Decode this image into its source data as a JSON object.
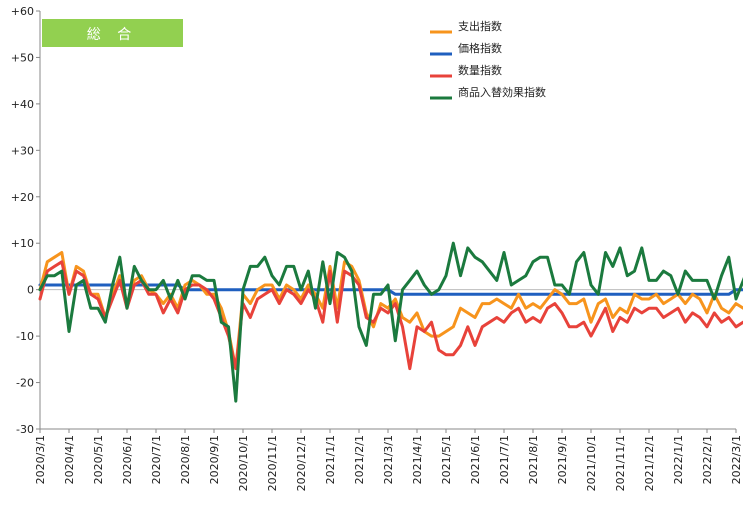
{
  "chart_data": {
    "type": "line",
    "title": "総 合",
    "title_badge_color": "#92D050",
    "xlabel": "",
    "ylabel": "",
    "ylim": [
      -30,
      60
    ],
    "y_ticks": [
      {
        "value": 60,
        "label": "+60"
      },
      {
        "value": 50,
        "label": "+50"
      },
      {
        "value": 40,
        "label": "+40"
      },
      {
        "value": 30,
        "label": "+30"
      },
      {
        "value": 20,
        "label": "+20"
      },
      {
        "value": 10,
        "label": "+10"
      },
      {
        "value": 0,
        "label": "0"
      },
      {
        "value": -10,
        "label": "-10"
      },
      {
        "value": -20,
        "label": "-20"
      },
      {
        "value": -30,
        "label": "-30"
      }
    ],
    "x_tick_labels": [
      "2020/3/1",
      "2020/4/1",
      "2020/5/1",
      "2020/6/1",
      "2020/7/1",
      "2020/8/1",
      "2020/9/1",
      "2020/10/1",
      "2020/11/1",
      "2020/12/1",
      "2021/1/1",
      "2021/2/1",
      "2021/3/1",
      "2021/4/1",
      "2021/5/1",
      "2021/6/1",
      "2021/7/1",
      "2021/8/1",
      "2021/9/1",
      "2021/10/1",
      "2021/11/1",
      "2021/12/1",
      "2022/1/1",
      "2022/2/1",
      "2022/3/1"
    ],
    "points_per_month": 4,
    "x_start": "2020/3/1",
    "x_end": "2022/3/1",
    "legend_position": "top-right",
    "series": [
      {
        "name": "支出指数",
        "color": "#F7941D",
        "values": [
          0,
          6,
          7,
          8,
          -1,
          5,
          4,
          -1,
          -1,
          -6,
          -1,
          3,
          -3,
          2,
          3,
          0,
          -1,
          -3,
          -1,
          -4,
          1,
          2,
          1,
          -1,
          -1,
          -4,
          -9,
          -17,
          -1,
          -3,
          0,
          1,
          1,
          -2,
          1,
          0,
          -2,
          1,
          -1,
          -4,
          5,
          -4,
          6,
          5,
          2,
          -5,
          -8,
          -3,
          -4,
          -2,
          -6,
          -7,
          -5,
          -9,
          -10,
          -10,
          -9,
          -8,
          -4,
          -5,
          -6,
          -3,
          -3,
          -2,
          -3,
          -4,
          -1,
          -4,
          -3,
          -4,
          -2,
          0,
          -1,
          -3,
          -3,
          -2,
          -7,
          -3,
          -2,
          -6,
          -4,
          -5,
          -1,
          -2,
          -2,
          -1,
          -3,
          -2,
          -1,
          -3,
          -1,
          -2,
          -5,
          -1,
          -4,
          -5,
          -3,
          -4,
          -3,
          -6,
          -3,
          -1,
          -7,
          -4,
          -1,
          -1,
          -2,
          -1,
          -2,
          -1,
          -3,
          -1
        ]
      },
      {
        "name": "価格指数",
        "color": "#1F5FBF",
        "values": [
          1,
          1,
          1,
          1,
          1,
          1,
          1,
          1,
          1,
          1,
          1,
          1,
          1,
          1,
          1,
          1,
          1,
          1,
          1,
          1,
          0,
          0,
          0,
          0,
          0,
          0,
          0,
          0,
          0,
          0,
          0,
          0,
          0,
          0,
          0,
          0,
          0,
          0,
          0,
          0,
          0,
          0,
          0,
          0,
          0,
          0,
          0,
          0,
          0,
          -1,
          -1,
          -1,
          -1,
          -1,
          -1,
          -1,
          -1,
          -1,
          -1,
          -1,
          -1,
          -1,
          -1,
          -1,
          -1,
          -1,
          -1,
          -1,
          -1,
          -1,
          -1,
          -1,
          -1,
          -1,
          -1,
          -1,
          -1,
          -1,
          -1,
          -1,
          -1,
          -1,
          -1,
          -1,
          -1,
          -1,
          -1,
          -1,
          -1,
          -1,
          -1,
          -1,
          -1,
          -1,
          -1,
          -1,
          0,
          0,
          0,
          0,
          0,
          0,
          0,
          0,
          0,
          0,
          0,
          0,
          0,
          0,
          0,
          0
        ]
      },
      {
        "name": "数量指数",
        "color": "#E8423A",
        "values": [
          -2,
          4,
          5,
          6,
          -1,
          4,
          3,
          -1,
          -2,
          -6,
          -2,
          2,
          -4,
          1,
          2,
          -1,
          -1,
          -5,
          -2,
          -5,
          0,
          1,
          1,
          0,
          -2,
          -6,
          -10,
          -17,
          -3,
          -6,
          -2,
          -1,
          0,
          -3,
          0,
          -1,
          -3,
          0,
          -2,
          -7,
          4,
          -7,
          4,
          3,
          1,
          -6,
          -7,
          -4,
          -5,
          -3,
          -8,
          -17,
          -8,
          -9,
          -7,
          -13,
          -14,
          -14,
          -12,
          -8,
          -12,
          -8,
          -7,
          -6,
          -7,
          -5,
          -4,
          -7,
          -6,
          -7,
          -4,
          -3,
          -5,
          -8,
          -8,
          -7,
          -10,
          -7,
          -4,
          -9,
          -6,
          -7,
          -4,
          -5,
          -4,
          -4,
          -6,
          -5,
          -4,
          -7,
          -5,
          -6,
          -8,
          -5,
          -7,
          -6,
          -8,
          -7,
          -6,
          -8,
          -6,
          -2,
          -10,
          -7,
          -4,
          -4,
          -5,
          -4,
          -5,
          -5,
          -6,
          -4
        ]
      },
      {
        "name": "商品入替効果指数",
        "color": "#1B7A3E",
        "values": [
          0,
          3,
          3,
          4,
          -9,
          1,
          2,
          -4,
          -4,
          -7,
          1,
          7,
          -4,
          5,
          2,
          0,
          0,
          2,
          -2,
          2,
          -2,
          3,
          3,
          2,
          2,
          -7,
          -8,
          -24,
          0,
          5,
          5,
          7,
          3,
          1,
          5,
          5,
          0,
          4,
          -4,
          6,
          -3,
          8,
          7,
          4,
          -8,
          -12,
          -1,
          -1,
          1,
          -11,
          0,
          2,
          4,
          1,
          -1,
          0,
          3,
          10,
          3,
          9,
          7,
          6,
          4,
          2,
          8,
          1,
          2,
          3,
          6,
          7,
          7,
          1,
          1,
          -1,
          6,
          8,
          1,
          -1,
          8,
          5,
          9,
          3,
          4,
          9,
          2,
          2,
          4,
          3,
          -1,
          4,
          2,
          2,
          2,
          -2,
          3,
          7,
          -2,
          2,
          6,
          4,
          3,
          4,
          3,
          2,
          6,
          8,
          2,
          2,
          2,
          2,
          2,
          2
        ]
      }
    ]
  }
}
